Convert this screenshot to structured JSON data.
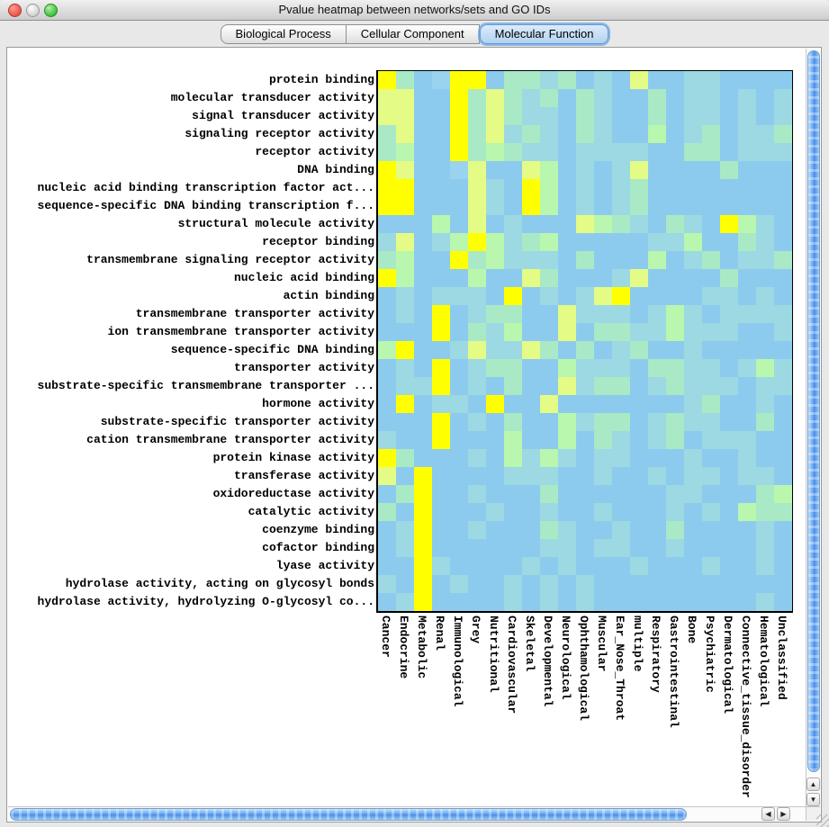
{
  "window": {
    "title": "Pvalue heatmap between networks/sets and GO IDs"
  },
  "tabs": [
    {
      "label": "Biological Process",
      "selected": false
    },
    {
      "label": "Cellular Component",
      "selected": false
    },
    {
      "label": "Molecular Function",
      "selected": true
    }
  ],
  "scrollbar": {
    "up_glyph": "▲",
    "down_glyph": "▼",
    "left_glyph": "◀",
    "right_glyph": "▶"
  },
  "chart_data": {
    "type": "heatmap",
    "title": "Pvalue heatmap between networks/sets and GO IDs",
    "selected_set": "Molecular Function",
    "legend_position": "none",
    "cell_size_px": 20,
    "rows": [
      "protein binding",
      "molecular transducer activity",
      "signal transducer activity",
      "signaling receptor activity",
      "receptor activity",
      "DNA binding",
      "nucleic acid binding transcription factor act...",
      "sequence-specific DNA binding transcription f...",
      "structural molecule activity",
      "receptor binding",
      "transmembrane signaling receptor activity",
      "nucleic acid binding",
      "actin binding",
      "transmembrane transporter activity",
      "ion transmembrane transporter activity",
      "sequence-specific DNA binding",
      "transporter activity",
      "substrate-specific transmembrane transporter ...",
      "hormone activity",
      "substrate-specific transporter activity",
      "cation transmembrane transporter activity",
      "protein kinase activity",
      "transferase activity",
      "oxidoreductase activity",
      "catalytic activity",
      "coenzyme binding",
      "cofactor binding",
      "lyase activity",
      "hydrolase activity, acting on glycosyl bonds",
      "hydrolase activity, hydrolyzing O-glycosyl co..."
    ],
    "columns": [
      "Cancer",
      "Endocrine",
      "Metabolic",
      "Renal",
      "Immunological",
      "Grey",
      "Nutritional",
      "Cardiovascular",
      "Skeletal",
      "Developmental",
      "Neurological",
      "Ophthamological",
      "Muscular",
      "Ear_Nose_Throat",
      "multiple",
      "Respiratory",
      "Gastrointestinal",
      "Bone",
      "Psychiatric",
      "Dermatological",
      "Connective_tissue_disorder",
      "Hematological",
      "Unclassified"
    ],
    "palette": {
      "Y": "#ffff00",
      "y": "#e4fb85",
      "g": "#b9f6ae",
      "t": "#a9e9c6",
      "c": "#9cd9e2",
      "b": "#99d3ef",
      "B": "#8ccbed"
    },
    "palette_meaning": "Y=lowest pvalue (bright yellow) through green/teal to B=highest (sky blue)",
    "cells": [
      "YtBbYYBttctBcByBBccBBBB",
      "yyBBYtytctBtcBBtBccBcBc",
      "yyBBYtytccBtcBBtBccBcBc",
      "tyBBYtyctcBtcBBgBctBcct",
      "tgBBYtgtccBccccBBttBccc",
      "YyBBbyBBygBcBcyBBBBtBBB",
      "YYBBBycBYgBcBctBBBBBBBB",
      "YYBBBycBYgBcBctBBBBBBBB",
      "BBBgByBcBBBygtcBtcBYgcB",
      "cyBcgYgctgBBBBBccgBBtcB",
      "tgBBYtgcccBtBBBgBctBcct",
      "YgBBBgBBytBBBcyBBBBtBBB",
      "BcBcccBYBcBcyYBBBBccBcB",
      "BcBYBcttBBycccBcgcBcccc",
      "BBBYBtcgBByBttccgcccBBc",
      "gYBBcyccytBtBctBBcBBBBB",
      "BcBYBcttBBgcccBttccBcgc",
      "BccYBcBtBBycttBctcccBcc",
      "BYBccBYBByBBBBBBBctBBcB",
      "BBBYBcBtBBgcttBctccBBtB",
      "cBBYBBBgBBgBtcBctBcccBB",
      "YtBBBcBgcgcBccBBBcBBcBB",
      "yBYBBBBcccBBcBBcBccBccB",
      "BtYBBcBBBtBBBBBBccBBBtg",
      "tBYBBBcBBcBBcBBBcBcBgtt",
      "BcYBBcBBBtcBBcBBtBBBBcB",
      "BcYBBBBBBccBccBBcBBBBcB",
      "BBYcBBBBcBcBBBcBBBcBBcB",
      "cBYBcBBcBcBcBBBBBBBBBBB",
      "BcYBBBBcBcBcBBBBBBBBBcB"
    ]
  }
}
